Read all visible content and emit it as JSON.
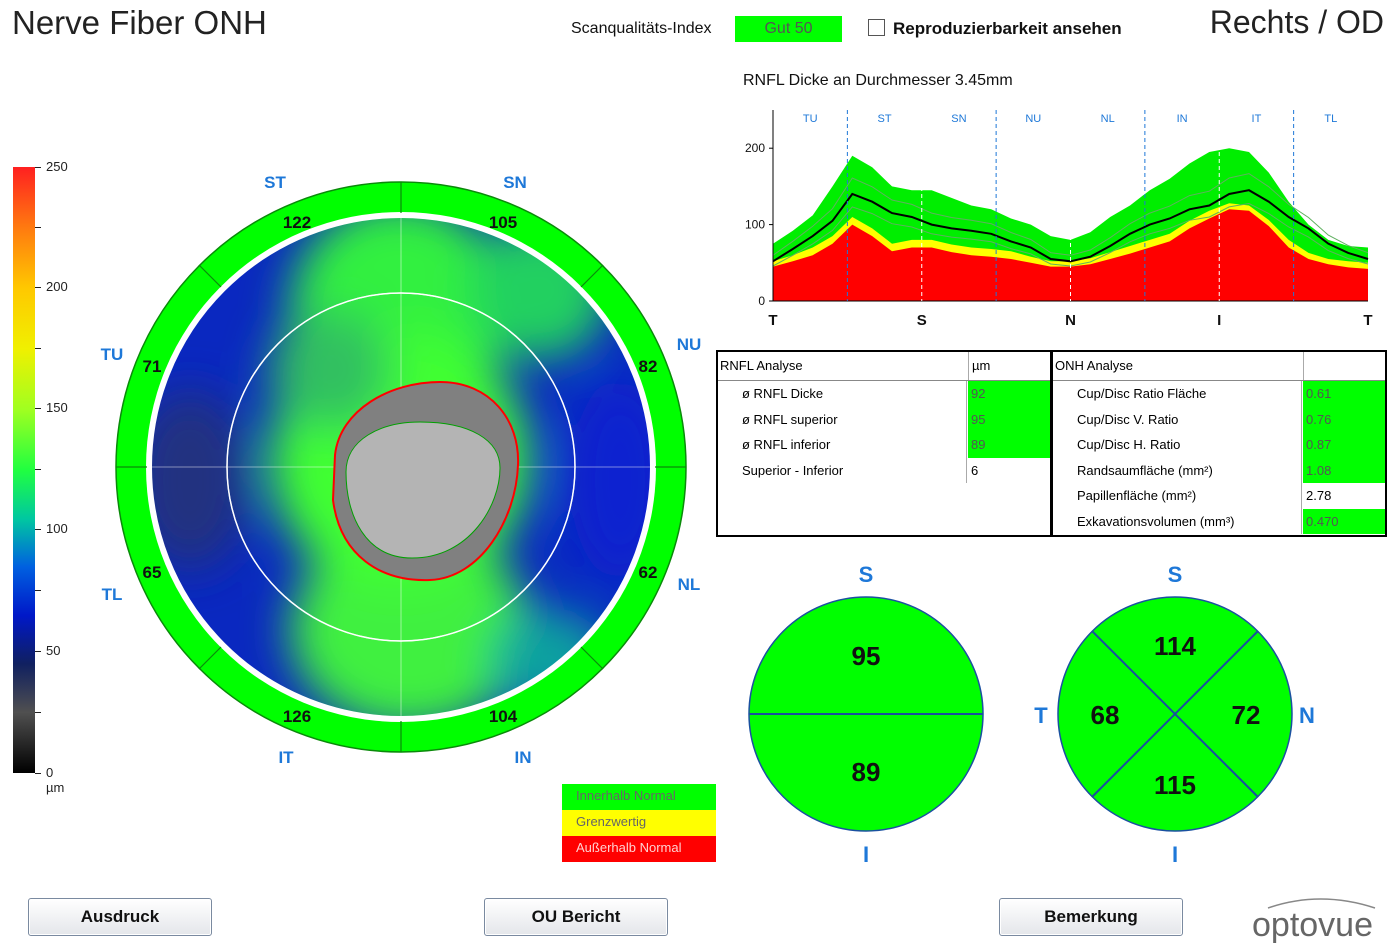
{
  "header": {
    "title": "Nerve Fiber ONH",
    "scan_quality_label": "Scanqualitäts-Index",
    "scan_quality_value": "Gut  50",
    "reproducibility_label": "Reproduzierbarkeit ansehen",
    "eye": "Rechts / OD"
  },
  "colorbar": {
    "labels": [
      "250",
      "200",
      "150",
      "100",
      "50",
      "0 µm"
    ]
  },
  "onh_map": {
    "sector_labels": {
      "ST": "ST",
      "SN": "SN",
      "NU": "NU",
      "NL": "NL",
      "IN": "IN",
      "IT": "IT",
      "TL": "TL",
      "TU": "TU"
    },
    "sector_values": {
      "ST": "122",
      "SN": "105",
      "NU": "82",
      "NL": "62",
      "IN": "104",
      "IT": "126",
      "TL": "65",
      "TU": "71"
    }
  },
  "legend": {
    "within_normal": "Innerhalb Normal",
    "borderline": "Grenzwertig",
    "outside_normal": "Außerhalb Normal",
    "colors": {
      "normal": "#00ff00",
      "borderline": "#ffff00",
      "outside": "#ff0000"
    }
  },
  "chart_title": "RNFL Dicke an Durchmesser 3.45mm",
  "chart_data": {
    "type": "line",
    "title": "RNFL Dicke an Durchmesser 3.45mm",
    "sector_labels": [
      "TU",
      "ST",
      "SN",
      "NU",
      "NL",
      "IN",
      "IT",
      "TL"
    ],
    "x_labels": [
      "T",
      "S",
      "N",
      "I",
      "T"
    ],
    "y_ticks": [
      "0",
      "100",
      "200"
    ],
    "ylim": [
      0,
      250
    ],
    "series": [
      {
        "values": [
          52,
          68,
          85,
          105,
          140,
          130,
          115,
          110,
          100,
          95,
          92,
          88,
          78,
          70,
          55,
          52,
          58,
          72,
          88,
          100,
          108,
          120,
          125,
          140,
          145,
          130,
          110,
          95,
          75,
          63,
          55
        ]
      }
    ],
    "bands": {
      "red_top": [
        45,
        52,
        60,
        75,
        100,
        85,
        65,
        70,
        70,
        64,
        60,
        58,
        55,
        50,
        45,
        45,
        48,
        55,
        62,
        70,
        78,
        95,
        108,
        120,
        118,
        98,
        70,
        55,
        48,
        44,
        42
      ],
      "yellow_top": [
        52,
        60,
        70,
        85,
        110,
        95,
        75,
        80,
        80,
        74,
        70,
        68,
        65,
        58,
        52,
        52,
        56,
        64,
        72,
        80,
        88,
        105,
        118,
        128,
        125,
        106,
        80,
        63,
        55,
        52,
        50
      ],
      "green_top": [
        75,
        92,
        112,
        150,
        190,
        175,
        150,
        145,
        145,
        135,
        125,
        120,
        108,
        100,
        85,
        80,
        90,
        110,
        125,
        145,
        160,
        180,
        195,
        200,
        195,
        168,
        130,
        100,
        80,
        72,
        70
      ]
    }
  },
  "rnfl_table": {
    "header": "RNFL Analyse",
    "unit": "µm",
    "rows": [
      {
        "label": "ø RNFL Dicke",
        "value": "92",
        "status": "normal"
      },
      {
        "label": "ø RNFL superior",
        "value": "95",
        "status": "normal"
      },
      {
        "label": "ø RNFL inferior",
        "value": "89",
        "status": "normal"
      },
      {
        "label": "Superior - Inferior",
        "value": "6",
        "status": "none"
      }
    ]
  },
  "onh_table": {
    "header": "ONH Analyse",
    "rows": [
      {
        "label": "Cup/Disc Ratio Fläche",
        "value": "0.61",
        "status": "normal"
      },
      {
        "label": "Cup/Disc V. Ratio",
        "value": "0.76",
        "status": "normal"
      },
      {
        "label": "Cup/Disc H. Ratio",
        "value": "0.87",
        "status": "normal"
      },
      {
        "label": "Randsaumfläche (mm²)",
        "value": "1.08",
        "status": "normal"
      },
      {
        "label": "Papillenfläche (mm²)",
        "value": "2.78",
        "status": "none"
      },
      {
        "label": "Exkavationsvolumen (mm³)",
        "value": "0.470",
        "status": "normal"
      }
    ]
  },
  "hemi_circle": {
    "S": "S",
    "I": "I",
    "superior": "95",
    "inferior": "89"
  },
  "quadrant_circle": {
    "S": "S",
    "I": "I",
    "T": "T",
    "N": "N",
    "superior": "114",
    "inferior": "115",
    "temporal": "68",
    "nasal": "72"
  },
  "buttons": {
    "print": "Ausdruck",
    "ou_report": "OU Bericht",
    "remark": "Bemerkung"
  },
  "logo": "optovue"
}
